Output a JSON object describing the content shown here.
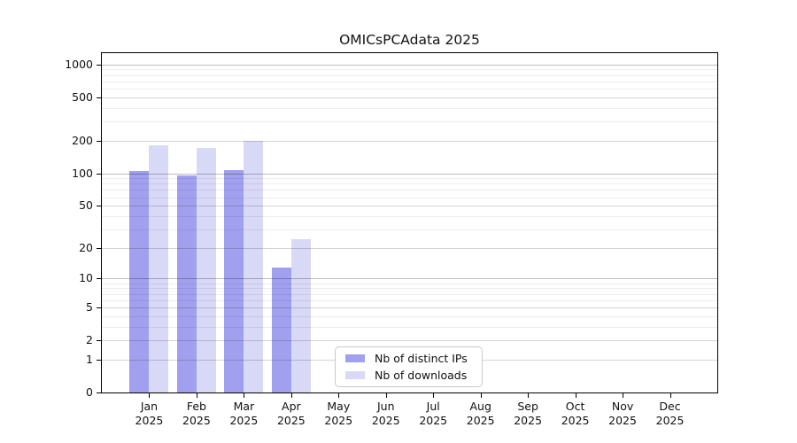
{
  "title": "OMICsPCAdata 2025",
  "chart_data": {
    "type": "bar",
    "title": "OMICsPCAdata 2025",
    "categories": [
      "Jan",
      "Feb",
      "Mar",
      "Apr",
      "May",
      "Jun",
      "Jul",
      "Aug",
      "Sep",
      "Oct",
      "Nov",
      "Dec"
    ],
    "x_tick_year": "2025",
    "series": [
      {
        "name": "Nb of distinct IPs",
        "color": "#a0a0ee",
        "values": [
          104,
          95,
          106,
          13,
          0,
          0,
          0,
          0,
          0,
          0,
          0,
          0
        ]
      },
      {
        "name": "Nb of downloads",
        "color": "#d8d8f7",
        "values": [
          180,
          170,
          200,
          24,
          0,
          0,
          0,
          0,
          0,
          0,
          0,
          0
        ]
      }
    ],
    "yscale": "log1p",
    "y_ticks": [
      0,
      1,
      2,
      5,
      10,
      20,
      50,
      100,
      200,
      500,
      1000
    ],
    "ylim": [
      0,
      1265
    ],
    "grid": true,
    "legend_position": "lower center inside",
    "xlabel": "",
    "ylabel": ""
  }
}
